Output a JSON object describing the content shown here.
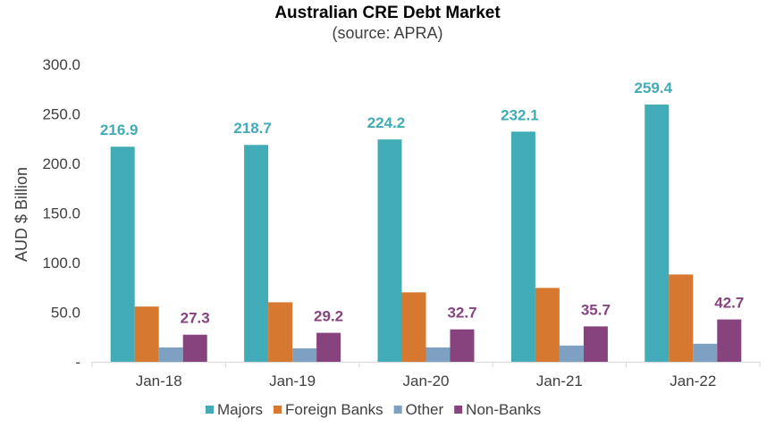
{
  "chart_data": {
    "type": "bar",
    "title": "Australian CRE Debt Market",
    "subtitle": "(source: APRA)",
    "xlabel": "",
    "ylabel": "AUD $ Billion",
    "ylim": [
      0,
      300
    ],
    "yticks": [
      "-",
      "50.0",
      "100.0",
      "150.0",
      "200.0",
      "250.0",
      "300.0"
    ],
    "grid": false,
    "legend_position": "bottom",
    "categories": [
      "Jan-18",
      "Jan-19",
      "Jan-20",
      "Jan-21",
      "Jan-22"
    ],
    "series": [
      {
        "name": "Majors",
        "color": "#41ABB7",
        "values": [
          216.9,
          218.7,
          224.2,
          232.1,
          259.4
        ],
        "labels": [
          "216.9",
          "218.7",
          "224.2",
          "232.1",
          "259.4"
        ]
      },
      {
        "name": "Foreign Banks",
        "color": "#D6782F",
        "values": [
          55.7,
          60.0,
          70.0,
          74.5,
          88.0
        ]
      },
      {
        "name": "Other",
        "color": "#7EA0C2",
        "values": [
          14.5,
          13.6,
          14.5,
          16.4,
          18.2
        ]
      },
      {
        "name": "Non-Banks",
        "color": "#86437D",
        "values": [
          27.3,
          29.2,
          32.7,
          35.7,
          42.7
        ],
        "labels": [
          "27.3",
          "29.2",
          "32.7",
          "35.7",
          "42.7"
        ]
      }
    ]
  }
}
